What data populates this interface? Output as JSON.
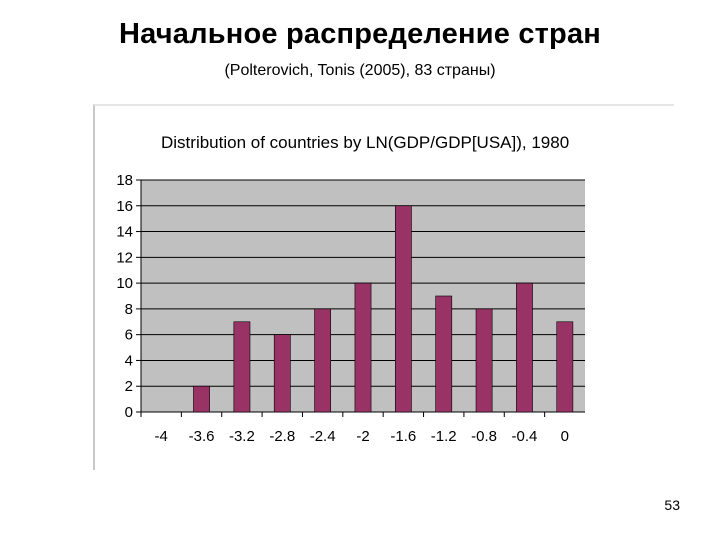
{
  "slide": {
    "title": "Начальное распределение стран",
    "subtitle": "(Polterovich, Tonis (2005), 83 страны)",
    "page_number": "53"
  },
  "colors": {
    "bar": "#993366",
    "plot_background": "#c0c0c0",
    "gridline": "#000000"
  },
  "chart_data": {
    "type": "bar",
    "title": "Distribution of countries by LN(GDP/GDP[USA]), 1980",
    "xlabel": "",
    "ylabel": "",
    "categories": [
      "-4",
      "-3.6",
      "-3.2",
      "-2.8",
      "-2.4",
      "-2",
      "-1.6",
      "-1.2",
      "-0.8",
      "-0.4",
      "0"
    ],
    "values": [
      0,
      2,
      7,
      6,
      8,
      10,
      16,
      9,
      8,
      10,
      7
    ],
    "y_ticks": [
      "0",
      "2",
      "4",
      "6",
      "8",
      "10",
      "12",
      "14",
      "16",
      "18"
    ],
    "ylim": [
      0,
      18
    ],
    "grid": true,
    "legend": "none"
  }
}
